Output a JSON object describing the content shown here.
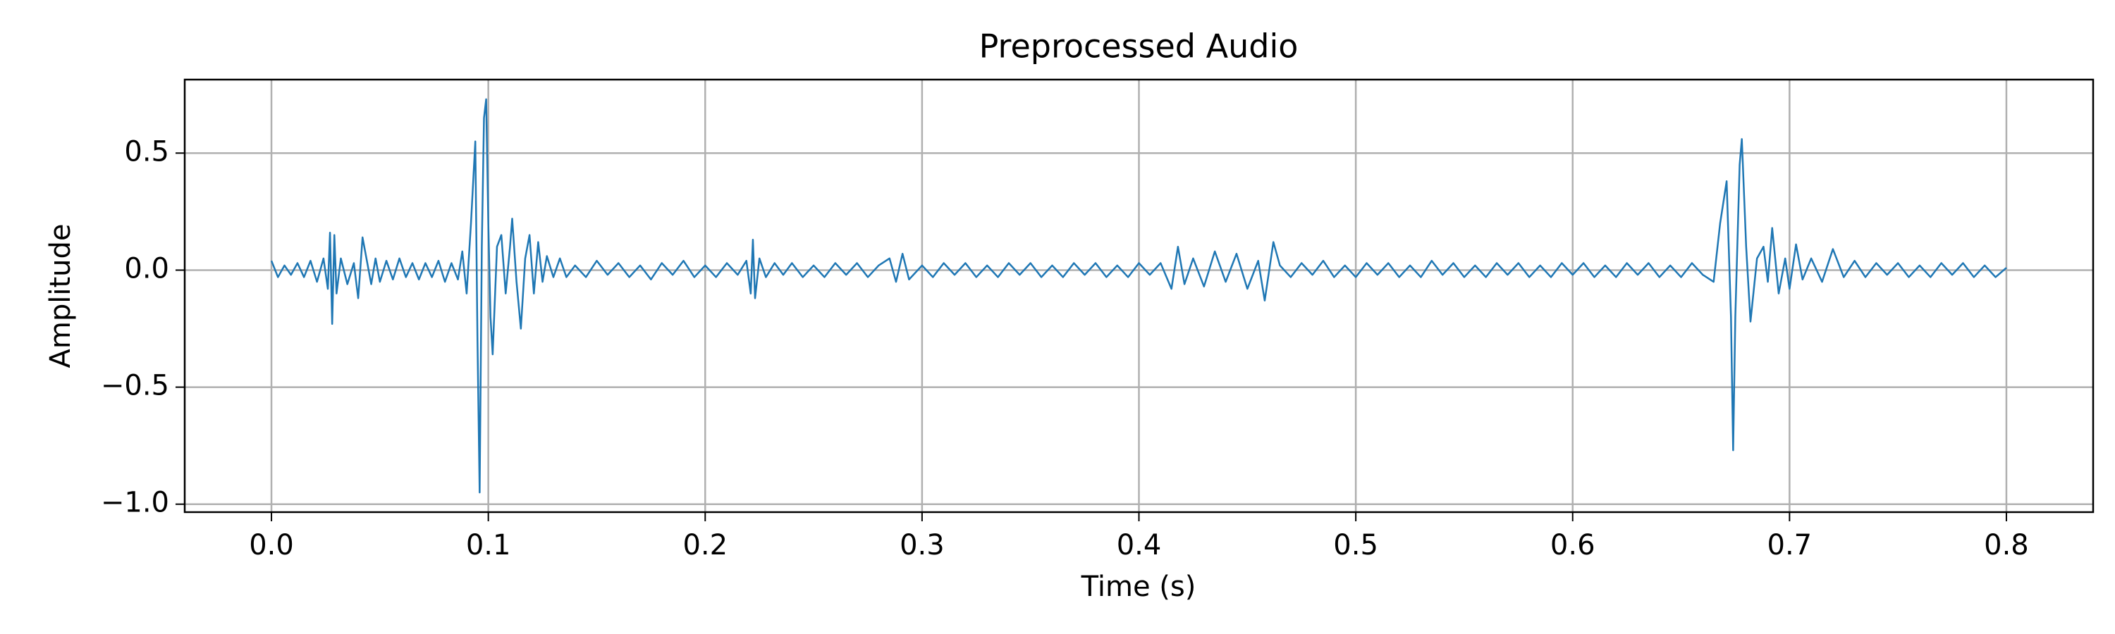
{
  "chart_data": {
    "type": "line",
    "title": "Preprocessed Audio",
    "xlabel": "Time (s)",
    "ylabel": "Amplitude",
    "color": "#1f77b4",
    "grid": true,
    "xlim": [
      -0.04,
      0.84
    ],
    "ylim": [
      -1.034,
      0.814
    ],
    "xticks": [
      {
        "value": 0,
        "label": "0.0"
      },
      {
        "value": 0.1,
        "label": "0.1"
      },
      {
        "value": 0.2,
        "label": "0.2"
      },
      {
        "value": 0.3,
        "label": "0.3"
      },
      {
        "value": 0.4,
        "label": "0.4"
      },
      {
        "value": 0.5,
        "label": "0.5"
      },
      {
        "value": 0.6,
        "label": "0.6"
      },
      {
        "value": 0.7,
        "label": "0.7"
      },
      {
        "value": 0.8,
        "label": "0.8"
      }
    ],
    "yticks": [
      {
        "value": -1,
        "label": "−1.0"
      },
      {
        "value": -0.5,
        "label": "−0.5"
      },
      {
        "value": 0,
        "label": "0.0"
      },
      {
        "value": 0.5,
        "label": "0.5"
      }
    ],
    "x": [
      0,
      0.003,
      0.006,
      0.009,
      0.012,
      0.015,
      0.018,
      0.021,
      0.024,
      0.026,
      0.027,
      0.028,
      0.029,
      0.03,
      0.032,
      0.035,
      0.038,
      0.04,
      0.042,
      0.044,
      0.046,
      0.048,
      0.05,
      0.053,
      0.056,
      0.059,
      0.062,
      0.065,
      0.068,
      0.071,
      0.074,
      0.077,
      0.08,
      0.083,
      0.086,
      0.088,
      0.09,
      0.092,
      0.094,
      0.095,
      0.096,
      0.097,
      0.098,
      0.099,
      0.1,
      0.101,
      0.102,
      0.104,
      0.106,
      0.108,
      0.11,
      0.111,
      0.113,
      0.115,
      0.117,
      0.119,
      0.121,
      0.123,
      0.125,
      0.127,
      0.13,
      0.133,
      0.136,
      0.14,
      0.145,
      0.15,
      0.155,
      0.16,
      0.165,
      0.17,
      0.175,
      0.18,
      0.185,
      0.19,
      0.195,
      0.2,
      0.205,
      0.21,
      0.215,
      0.219,
      0.221,
      0.222,
      0.223,
      0.225,
      0.228,
      0.232,
      0.236,
      0.24,
      0.245,
      0.25,
      0.255,
      0.26,
      0.265,
      0.27,
      0.275,
      0.28,
      0.285,
      0.288,
      0.291,
      0.294,
      0.3,
      0.305,
      0.31,
      0.315,
      0.32,
      0.325,
      0.33,
      0.335,
      0.34,
      0.345,
      0.35,
      0.355,
      0.36,
      0.365,
      0.37,
      0.375,
      0.38,
      0.385,
      0.39,
      0.395,
      0.4,
      0.405,
      0.41,
      0.415,
      0.418,
      0.421,
      0.425,
      0.43,
      0.435,
      0.44,
      0.445,
      0.45,
      0.455,
      0.458,
      0.462,
      0.465,
      0.47,
      0.475,
      0.48,
      0.485,
      0.49,
      0.495,
      0.5,
      0.505,
      0.51,
      0.515,
      0.52,
      0.525,
      0.53,
      0.535,
      0.54,
      0.545,
      0.55,
      0.555,
      0.56,
      0.565,
      0.57,
      0.575,
      0.58,
      0.585,
      0.59,
      0.595,
      0.6,
      0.605,
      0.61,
      0.615,
      0.62,
      0.625,
      0.63,
      0.635,
      0.64,
      0.645,
      0.65,
      0.655,
      0.66,
      0.665,
      0.668,
      0.671,
      0.673,
      0.674,
      0.675,
      0.677,
      0.678,
      0.68,
      0.682,
      0.685,
      0.688,
      0.69,
      0.692,
      0.695,
      0.698,
      0.7,
      0.703,
      0.706,
      0.71,
      0.715,
      0.72,
      0.725,
      0.73,
      0.735,
      0.74,
      0.745,
      0.75,
      0.755,
      0.76,
      0.765,
      0.77,
      0.775,
      0.78,
      0.785,
      0.79,
      0.795,
      0.8
    ],
    "values": [
      0.04,
      -0.03,
      0.02,
      -0.02,
      0.03,
      -0.03,
      0.04,
      -0.05,
      0.05,
      -0.08,
      0.16,
      -0.23,
      0.15,
      -0.1,
      0.05,
      -0.06,
      0.03,
      -0.12,
      0.14,
      0.04,
      -0.06,
      0.05,
      -0.05,
      0.04,
      -0.04,
      0.05,
      -0.03,
      0.03,
      -0.04,
      0.03,
      -0.03,
      0.04,
      -0.05,
      0.03,
      -0.04,
      0.08,
      -0.1,
      0.2,
      0.55,
      -0.3,
      -0.95,
      0.1,
      0.65,
      0.73,
      0.2,
      -0.2,
      -0.36,
      0.1,
      0.15,
      -0.1,
      0.1,
      0.22,
      -0.05,
      -0.25,
      0.05,
      0.15,
      -0.1,
      0.12,
      -0.05,
      0.06,
      -0.03,
      0.05,
      -0.03,
      0.02,
      -0.03,
      0.04,
      -0.02,
      0.03,
      -0.03,
      0.02,
      -0.04,
      0.03,
      -0.02,
      0.04,
      -0.03,
      0.02,
      -0.03,
      0.03,
      -0.02,
      0.04,
      -0.1,
      0.13,
      -0.12,
      0.05,
      -0.03,
      0.03,
      -0.02,
      0.03,
      -0.03,
      0.02,
      -0.03,
      0.03,
      -0.02,
      0.03,
      -0.03,
      0.02,
      0.05,
      -0.05,
      0.07,
      -0.04,
      0.02,
      -0.03,
      0.03,
      -0.02,
      0.03,
      -0.03,
      0.02,
      -0.03,
      0.03,
      -0.02,
      0.03,
      -0.03,
      0.02,
      -0.03,
      0.03,
      -0.02,
      0.03,
      -0.03,
      0.02,
      -0.03,
      0.03,
      -0.02,
      0.03,
      -0.08,
      0.1,
      -0.06,
      0.05,
      -0.07,
      0.08,
      -0.05,
      0.07,
      -0.08,
      0.04,
      -0.13,
      0.12,
      0.02,
      -0.03,
      0.03,
      -0.02,
      0.04,
      -0.03,
      0.02,
      -0.03,
      0.03,
      -0.02,
      0.03,
      -0.03,
      0.02,
      -0.03,
      0.04,
      -0.02,
      0.03,
      -0.03,
      0.02,
      -0.03,
      0.03,
      -0.02,
      0.03,
      -0.03,
      0.02,
      -0.03,
      0.03,
      -0.02,
      0.03,
      -0.03,
      0.02,
      -0.03,
      0.03,
      -0.02,
      0.03,
      -0.03,
      0.02,
      -0.03,
      0.03,
      -0.02,
      -0.05,
      0.2,
      0.38,
      -0.2,
      -0.77,
      -0.2,
      0.45,
      0.56,
      0.1,
      -0.22,
      0.05,
      0.1,
      -0.05,
      0.18,
      -0.1,
      0.05,
      -0.08,
      0.11,
      -0.04,
      0.05,
      -0.05,
      0.09,
      -0.03,
      0.04,
      -0.03,
      0.03,
      -0.02,
      0.03,
      -0.03,
      0.02,
      -0.03,
      0.03,
      -0.02,
      0.03,
      -0.03,
      0.02,
      -0.03,
      0.01
    ]
  }
}
